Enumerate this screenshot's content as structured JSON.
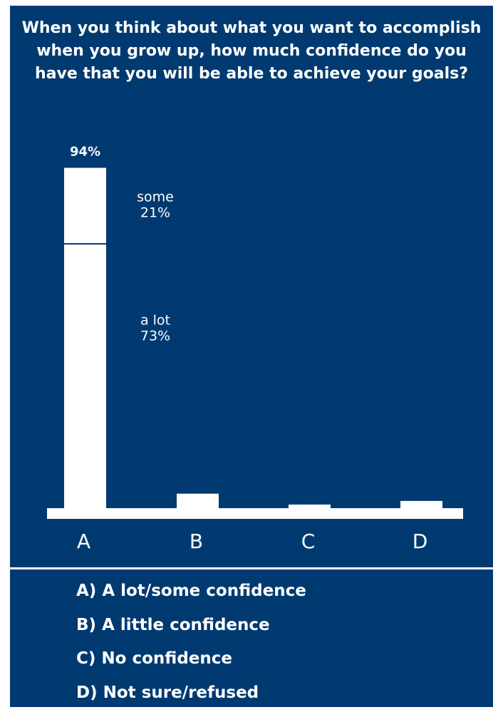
{
  "chart_data": {
    "type": "bar",
    "title": "When you think about what you want to accomplish when you grow up, how much confidence do you have that you will be able to achieve your goals?",
    "categories": [
      "A",
      "B",
      "C",
      "D"
    ],
    "values": [
      94,
      4,
      1,
      2
    ],
    "value_labels": [
      "94%",
      null,
      null,
      null
    ],
    "segments": [
      {
        "name": "a lot",
        "value": 73,
        "value_label": "73%"
      },
      {
        "name": "some",
        "value": 21,
        "value_label": "21%"
      }
    ],
    "color": "#ffffff",
    "background": "#003a70",
    "ylim": [
      0,
      100
    ],
    "legend": [
      "A) A lot/some confidence",
      "B) A little confidence",
      "C) No confidence",
      "D) Not sure/refused"
    ]
  }
}
